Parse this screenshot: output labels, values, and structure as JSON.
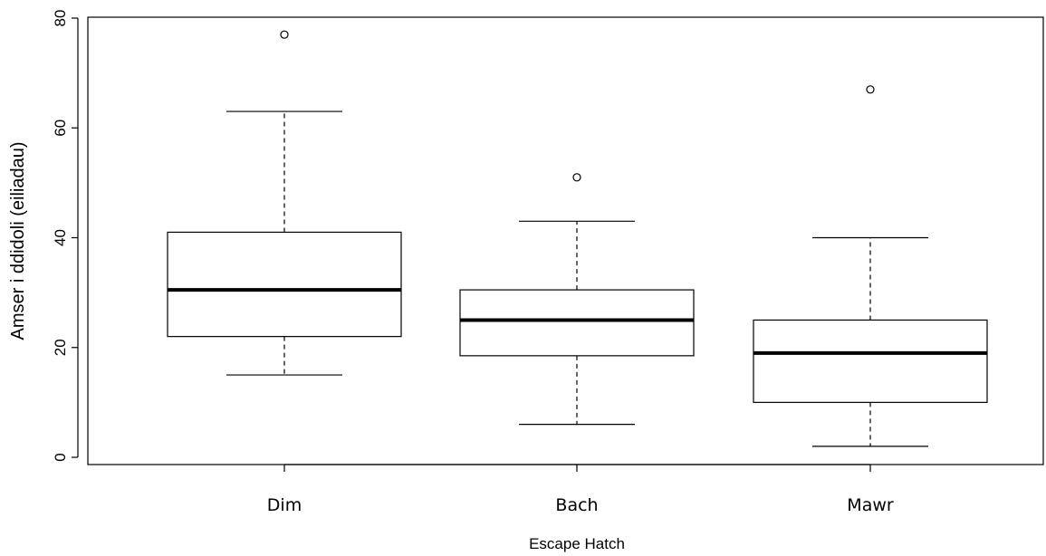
{
  "chart_data": {
    "type": "box",
    "title": "",
    "xlabel": "Escape Hatch",
    "ylabel": "Amser i ddidoli (eiliadau)",
    "ylim": [
      0,
      80
    ],
    "yticks": [
      "0",
      "20",
      "40",
      "60",
      "80"
    ],
    "categories": [
      "Dim",
      "Bach",
      "Mawr"
    ],
    "boxes": [
      {
        "category": "Dim",
        "min": 15,
        "q1": 22,
        "median": 30.5,
        "q3": 41,
        "max": 63,
        "outliers": [
          77
        ]
      },
      {
        "category": "Bach",
        "min": 6,
        "q1": 18.5,
        "median": 25,
        "q3": 30.5,
        "max": 43,
        "outliers": [
          51
        ]
      },
      {
        "category": "Mawr",
        "min": 2,
        "q1": 10,
        "median": 19,
        "q3": 25,
        "max": 40,
        "outliers": [
          67
        ]
      }
    ],
    "grid": false
  }
}
